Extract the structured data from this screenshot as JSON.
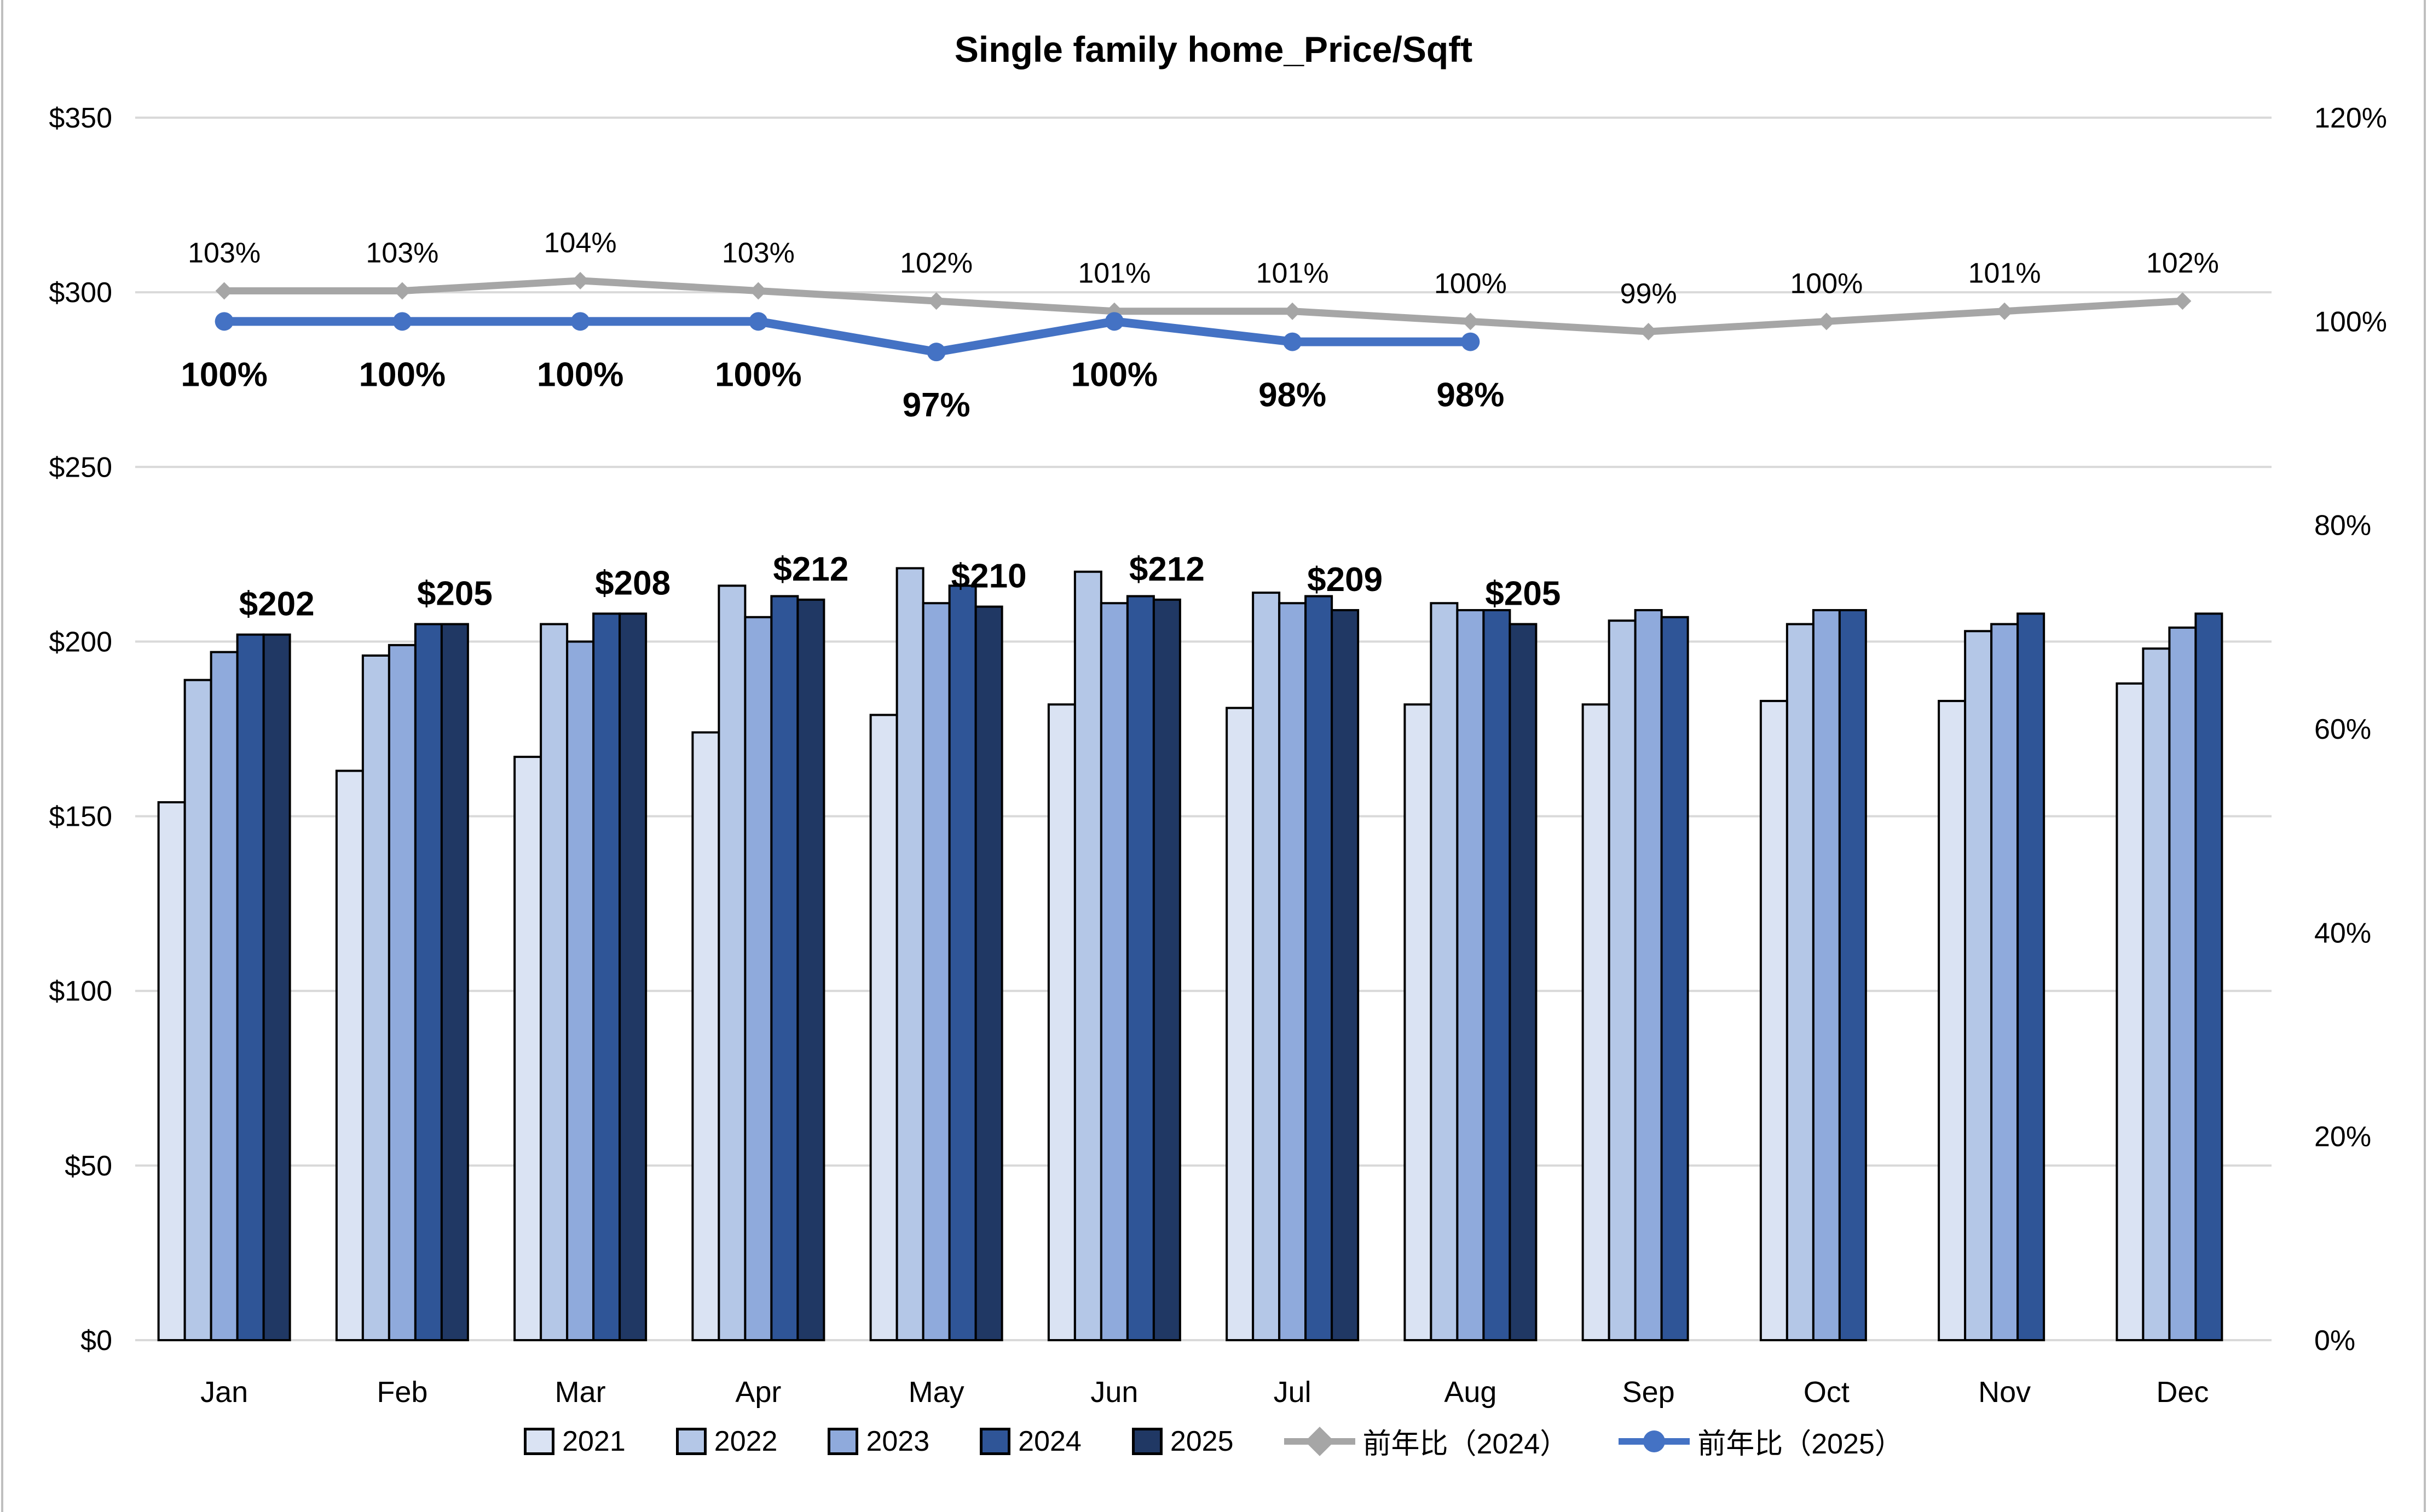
{
  "chart_data": {
    "type": "combo_bar_line",
    "title": "Single family home_Price/Sqft",
    "categories": [
      "Jan",
      "Feb",
      "Mar",
      "Apr",
      "May",
      "Jun",
      "Jul",
      "Aug",
      "Sep",
      "Oct",
      "Nov",
      "Dec"
    ],
    "left_axis": {
      "min": 0,
      "max": 350,
      "step": 50,
      "format": "dollar",
      "tick_labels": [
        "$0",
        "$50",
        "$100",
        "$150",
        "$200",
        "$250",
        "$300",
        "$350"
      ]
    },
    "right_axis": {
      "min": 0,
      "max": 120,
      "step": 20,
      "format": "percent",
      "tick_labels": [
        "0%",
        "20%",
        "40%",
        "60%",
        "80%",
        "100%",
        "120%"
      ]
    },
    "grid": "on",
    "grid_color": "#d9d9d9",
    "frame_color": "#bfbfbf",
    "background": "#ffffff",
    "bar_series": [
      {
        "name": "2021",
        "color": "#dae3f3",
        "values": [
          154,
          163,
          167,
          174,
          179,
          182,
          181,
          182,
          182,
          183,
          183,
          188
        ]
      },
      {
        "name": "2022",
        "color": "#b4c7e7",
        "values": [
          189,
          196,
          205,
          216,
          221,
          220,
          214,
          211,
          206,
          205,
          203,
          198
        ]
      },
      {
        "name": "2023",
        "color": "#8faadc",
        "values": [
          197,
          199,
          200,
          207,
          211,
          211,
          211,
          209,
          209,
          209,
          205,
          204
        ]
      },
      {
        "name": "2024",
        "color": "#2f5597",
        "values": [
          202,
          205,
          208,
          213,
          216,
          213,
          213,
          209,
          207,
          209,
          208,
          208
        ]
      },
      {
        "name": "2025",
        "color": "#203864",
        "values": [
          202,
          205,
          208,
          212,
          210,
          212,
          209,
          205,
          null,
          null,
          null,
          null
        ],
        "data_labels": [
          "$202",
          "$205",
          "$208",
          "$212",
          "$210",
          "$212",
          "$209",
          "$205"
        ]
      }
    ],
    "line_series": [
      {
        "name": "前年比（2024）",
        "color": "#a6a6a6",
        "marker": "diamond",
        "axis": "right",
        "label_bold": false,
        "label_position": "above",
        "values": [
          103,
          103,
          104,
          103,
          102,
          101,
          101,
          100,
          99,
          100,
          101,
          102
        ],
        "data_labels": [
          "103%",
          "103%",
          "104%",
          "103%",
          "102%",
          "101%",
          "101%",
          "100%",
          "99%",
          "100%",
          "101%",
          "102%"
        ]
      },
      {
        "name": "前年比（2025）",
        "color": "#4472c4",
        "marker": "circle",
        "axis": "right",
        "label_bold": true,
        "label_position": "below",
        "values": [
          100,
          100,
          100,
          100,
          97,
          100,
          98,
          98
        ],
        "data_labels": [
          "100%",
          "100%",
          "100%",
          "100%",
          "97%",
          "100%",
          "98%",
          "98%"
        ]
      }
    ],
    "legend_position": "bottom"
  }
}
